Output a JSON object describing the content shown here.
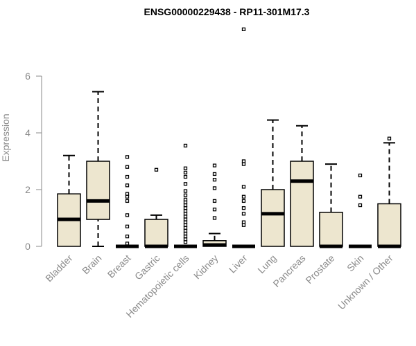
{
  "chart_data": {
    "type": "boxplot",
    "title": "ENSG00000229438 - RP11-301M17.3",
    "ylabel": "Expression",
    "xlabel": "",
    "ylim": [
      0,
      7
    ],
    "yticks": [
      0,
      2,
      4,
      6
    ],
    "grid": false,
    "colors": {
      "box_fill": "#ede6cf",
      "stroke": "#000000",
      "axis": "#8a8a8a"
    },
    "categories": [
      "Bladder",
      "Brain",
      "Breast",
      "Gastric",
      "Hematopoietic cells",
      "Kidney",
      "Liver",
      "Lung",
      "Pancreas",
      "Prostate",
      "Skin",
      "Unknown / Other"
    ],
    "boxes": [
      {
        "category": "Bladder",
        "whisker_low": 0,
        "q1": 0,
        "median": 0.95,
        "q3": 1.85,
        "whisker_high": 3.2,
        "outliers": []
      },
      {
        "category": "Brain",
        "whisker_low": 0,
        "q1": 0.95,
        "median": 1.6,
        "q3": 3.0,
        "whisker_high": 5.45,
        "outliers": []
      },
      {
        "category": "Breast",
        "whisker_low": 0,
        "q1": 0,
        "median": 0,
        "q3": 0,
        "whisker_high": 0,
        "outliers": [
          0.1,
          0.35,
          0.7,
          1.1,
          1.6,
          1.75,
          1.85,
          2.15,
          2.45,
          2.8,
          3.15
        ]
      },
      {
        "category": "Gastric",
        "whisker_low": 0,
        "q1": 0,
        "median": 0,
        "q3": 0.95,
        "whisker_high": 1.1,
        "outliers": [
          2.7
        ]
      },
      {
        "category": "Hematopoietic cells",
        "whisker_low": 0,
        "q1": 0,
        "median": 0,
        "q3": 0,
        "whisker_high": 0,
        "outliers": [
          0.15,
          0.25,
          0.35,
          0.45,
          0.55,
          0.65,
          0.75,
          0.85,
          0.95,
          1.05,
          1.15,
          1.25,
          1.35,
          1.45,
          1.55,
          1.65,
          1.8,
          1.95,
          2.2,
          2.45,
          2.6,
          2.75,
          3.55
        ]
      },
      {
        "category": "Kidney",
        "whisker_low": 0,
        "q1": 0,
        "median": 0.05,
        "q3": 0.2,
        "whisker_high": 0.45,
        "outliers": [
          1.0,
          1.3,
          1.6,
          2.05,
          2.35,
          2.55,
          2.85
        ]
      },
      {
        "category": "Liver",
        "whisker_low": 0,
        "q1": 0,
        "median": 0,
        "q3": 0,
        "whisker_high": 0,
        "outliers": [
          0.75,
          0.85,
          1.15,
          1.35,
          1.6,
          1.75,
          2.1,
          2.9,
          3.0,
          7.65
        ]
      },
      {
        "category": "Lung",
        "whisker_low": 0,
        "q1": 0,
        "median": 1.15,
        "q3": 2.0,
        "whisker_high": 4.45,
        "outliers": []
      },
      {
        "category": "Pancreas",
        "whisker_low": 0,
        "q1": 0,
        "median": 2.3,
        "q3": 3.0,
        "whisker_high": 4.25,
        "outliers": []
      },
      {
        "category": "Prostate",
        "whisker_low": 0,
        "q1": 0,
        "median": 0,
        "q3": 1.2,
        "whisker_high": 2.9,
        "outliers": []
      },
      {
        "category": "Skin",
        "whisker_low": 0,
        "q1": 0,
        "median": 0,
        "q3": 0,
        "whisker_high": 0,
        "outliers": [
          1.45,
          1.75,
          2.5
        ]
      },
      {
        "category": "Unknown / Other",
        "whisker_low": 0,
        "q1": 0,
        "median": 0,
        "q3": 1.5,
        "whisker_high": 3.65,
        "outliers": [
          3.8
        ]
      }
    ]
  }
}
